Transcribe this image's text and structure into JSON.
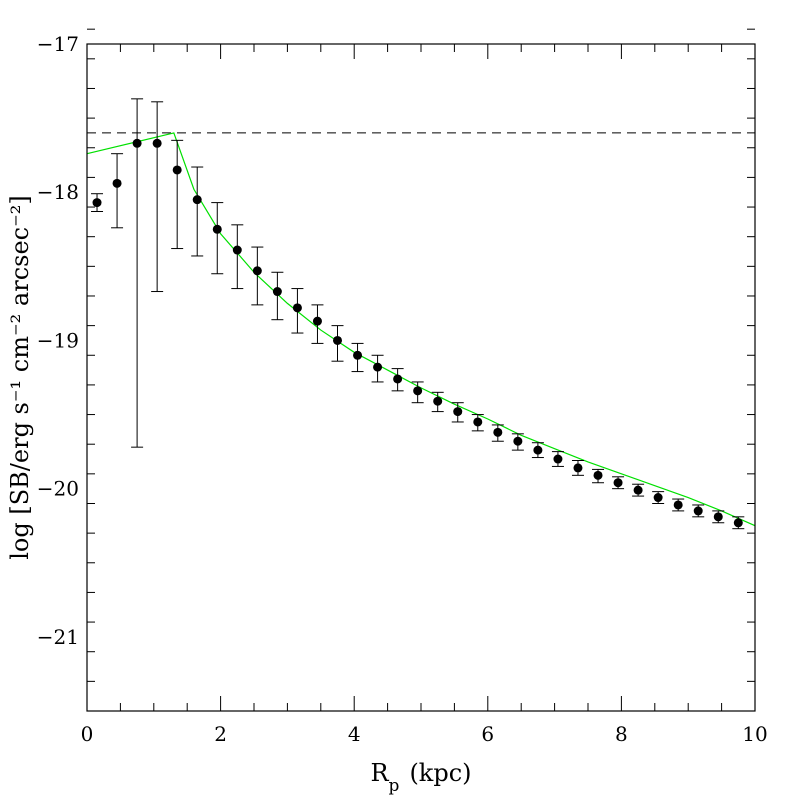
{
  "chart_data": {
    "type": "scatter",
    "title": "",
    "xlabel": "R",
    "xlabel_sub": "p",
    "xlabel_unit": "(kpc)",
    "ylabel": "log [SB/erg s⁻¹ cm⁻² arcsec⁻²]",
    "xlim": [
      0,
      10
    ],
    "ylim": [
      -21.5,
      -17
    ],
    "x_ticks": [
      0,
      2,
      4,
      6,
      8,
      10
    ],
    "y_ticks": [
      -21,
      -20,
      -19,
      -18,
      -17
    ],
    "x_tick_labels": [
      "0",
      "2",
      "4",
      "6",
      "8",
      "10"
    ],
    "y_tick_labels": [
      "−21",
      "−20",
      "−19",
      "−18",
      "−17"
    ],
    "grid": false,
    "colors": {
      "model_line": "#00e000",
      "data": "#000000",
      "reference_line": "#000000"
    },
    "reference_line": {
      "y": -17.6,
      "style": "dashed"
    },
    "series": [
      {
        "kind": "data",
        "x": [
          0.15,
          0.45,
          0.75,
          1.05,
          1.35,
          1.65,
          1.95,
          2.25,
          2.55,
          2.85,
          3.15,
          3.45,
          3.75,
          4.05,
          4.35,
          4.65,
          4.95,
          5.25,
          5.55,
          5.85,
          6.15,
          6.45,
          6.75,
          7.05,
          7.35,
          7.65,
          7.95,
          8.25,
          8.55,
          8.85,
          9.15,
          9.45,
          9.75
        ],
        "y": [
          -18.07,
          -17.94,
          -17.67,
          -17.67,
          -17.85,
          -18.05,
          -18.25,
          -18.39,
          -18.53,
          -18.67,
          -18.78,
          -18.87,
          -19.0,
          -19.1,
          -19.18,
          -19.26,
          -19.34,
          -19.41,
          -19.48,
          -19.55,
          -19.62,
          -19.68,
          -19.74,
          -19.8,
          -19.86,
          -19.91,
          -19.96,
          -20.01,
          -20.06,
          -20.11,
          -20.15,
          -20.19,
          -20.23
        ],
        "yerr_low": [
          0.06,
          0.3,
          2.05,
          1.0,
          0.53,
          0.38,
          0.3,
          0.26,
          0.23,
          0.19,
          0.17,
          0.15,
          0.14,
          0.11,
          0.1,
          0.08,
          0.08,
          0.07,
          0.07,
          0.06,
          0.06,
          0.06,
          0.05,
          0.05,
          0.05,
          0.05,
          0.04,
          0.04,
          0.04,
          0.04,
          0.04,
          0.04,
          0.04
        ],
        "yerr_high": [
          0.06,
          0.2,
          0.3,
          0.28,
          0.2,
          0.22,
          0.18,
          0.17,
          0.16,
          0.13,
          0.13,
          0.11,
          0.1,
          0.08,
          0.08,
          0.07,
          0.06,
          0.06,
          0.06,
          0.05,
          0.05,
          0.05,
          0.05,
          0.05,
          0.05,
          0.04,
          0.04,
          0.04,
          0.04,
          0.04,
          0.04,
          0.04,
          0.04
        ]
      },
      {
        "kind": "model",
        "x": [
          0,
          1.3,
          1.6,
          2.0,
          2.5,
          3.0,
          3.5,
          4.0,
          4.5,
          5.0,
          5.5,
          6.0,
          6.5,
          7.0,
          7.5,
          8.0,
          8.5,
          9.0,
          9.5,
          10.0
        ],
        "y": [
          -17.74,
          -17.6,
          -17.98,
          -18.28,
          -18.54,
          -18.75,
          -18.93,
          -19.08,
          -19.2,
          -19.32,
          -19.43,
          -19.53,
          -19.64,
          -19.73,
          -19.82,
          -19.9,
          -19.98,
          -20.06,
          -20.15,
          -20.25
        ]
      }
    ]
  }
}
